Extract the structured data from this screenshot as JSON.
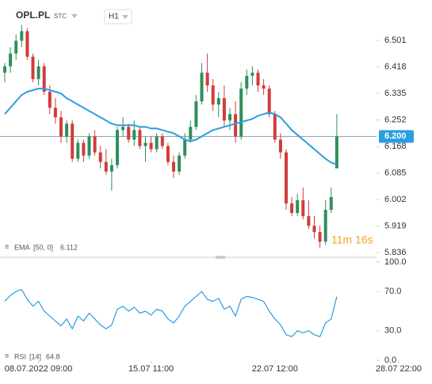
{
  "header": {
    "symbol": "OPL.PL",
    "market": "STC",
    "interval": "H1",
    "countdown": "11m 16s"
  },
  "chart_data": [
    {
      "type": "candlestick",
      "open": [
        6.4,
        6.42,
        6.46,
        6.5,
        6.53,
        6.45,
        6.38,
        6.42,
        6.34,
        6.29,
        6.26,
        6.2,
        6.24,
        6.13,
        6.18,
        6.14,
        6.2,
        6.15,
        6.12,
        6.09,
        6.11,
        6.22,
        6.23,
        6.19,
        6.22,
        6.17,
        6.18,
        6.16,
        6.2,
        6.17,
        6.12,
        6.09,
        6.14,
        6.19,
        6.23,
        6.31,
        6.4,
        6.36,
        6.3,
        6.32,
        6.25,
        6.27,
        6.2,
        6.35,
        6.39,
        6.4,
        6.36,
        6.35,
        6.27,
        6.19,
        6.15,
        5.99,
        5.96,
        6.0,
        5.95,
        5.92,
        5.9,
        5.87,
        5.97,
        6.1
      ],
      "high": [
        6.43,
        6.48,
        6.52,
        6.55,
        6.54,
        6.46,
        6.44,
        6.43,
        6.36,
        6.32,
        6.28,
        6.25,
        6.25,
        6.19,
        6.19,
        6.21,
        6.22,
        6.17,
        6.16,
        6.13,
        6.23,
        6.26,
        6.24,
        6.25,
        6.23,
        6.2,
        6.2,
        6.21,
        6.21,
        6.18,
        6.14,
        6.15,
        6.21,
        6.25,
        6.33,
        6.43,
        6.46,
        6.38,
        6.34,
        6.36,
        6.29,
        6.31,
        6.37,
        6.41,
        6.42,
        6.41,
        6.38,
        6.36,
        6.28,
        6.21,
        6.16,
        6.01,
        6.02,
        6.04,
        6.0,
        5.95,
        5.92,
        6.0,
        6.04,
        6.27
      ],
      "low": [
        6.37,
        6.4,
        6.44,
        6.48,
        6.44,
        6.37,
        6.36,
        6.33,
        6.27,
        6.24,
        6.18,
        6.18,
        6.12,
        6.12,
        6.12,
        6.13,
        6.14,
        6.1,
        6.08,
        6.03,
        6.1,
        6.2,
        6.18,
        6.17,
        6.16,
        6.12,
        6.15,
        6.15,
        6.16,
        6.11,
        6.07,
        6.08,
        6.13,
        6.18,
        6.22,
        6.3,
        6.34,
        6.28,
        6.26,
        6.23,
        6.22,
        6.18,
        6.19,
        6.33,
        6.36,
        6.34,
        6.33,
        6.26,
        6.18,
        6.13,
        5.97,
        5.95,
        5.95,
        5.94,
        5.91,
        5.88,
        5.85,
        5.86,
        5.96,
        6.1
      ],
      "close": [
        6.42,
        6.46,
        6.5,
        6.53,
        6.45,
        6.38,
        6.42,
        6.34,
        6.29,
        6.26,
        6.2,
        6.24,
        6.13,
        6.18,
        6.14,
        6.2,
        6.15,
        6.12,
        6.09,
        6.11,
        6.22,
        6.23,
        6.19,
        6.22,
        6.17,
        6.18,
        6.16,
        6.2,
        6.17,
        6.12,
        6.09,
        6.14,
        6.19,
        6.23,
        6.31,
        6.4,
        6.36,
        6.3,
        6.32,
        6.25,
        6.27,
        6.2,
        6.35,
        6.39,
        6.4,
        6.36,
        6.35,
        6.27,
        6.19,
        6.15,
        5.99,
        5.96,
        6.0,
        5.95,
        5.92,
        5.9,
        5.87,
        5.97,
        6.01,
        6.2
      ],
      "up_color": "#2f8f5b",
      "down_color": "#d23b3b",
      "indicator": {
        "name": "EMA",
        "params": "[50, 0]",
        "value": 6.112,
        "color": "#2a9ee0",
        "values": [
          6.27,
          6.29,
          6.31,
          6.33,
          6.34,
          6.345,
          6.35,
          6.35,
          6.345,
          6.34,
          6.335,
          6.32,
          6.31,
          6.3,
          6.29,
          6.28,
          6.27,
          6.26,
          6.25,
          6.24,
          6.235,
          6.235,
          6.235,
          6.235,
          6.23,
          6.23,
          6.225,
          6.225,
          6.22,
          6.215,
          6.21,
          6.2,
          6.19,
          6.185,
          6.19,
          6.2,
          6.21,
          6.22,
          6.225,
          6.23,
          6.235,
          6.24,
          6.245,
          6.25,
          6.255,
          6.265,
          6.27,
          6.275,
          6.27,
          6.26,
          6.24,
          6.22,
          6.205,
          6.19,
          6.175,
          6.16,
          6.145,
          6.13,
          6.118,
          6.112
        ]
      },
      "current_price": {
        "value": 6.2,
        "label": "6.200"
      },
      "ylim": [
        5.821,
        6.603
      ],
      "yticks": [
        6.501,
        6.418,
        6.335,
        6.252,
        6.168,
        6.085,
        6.002,
        5.919,
        5.836
      ],
      "xlim": [
        -1,
        75
      ],
      "xticks": [
        {
          "value": 6,
          "label": "08.07.2022 09:00"
        },
        {
          "value": 26,
          "label": "15.07 11:00"
        },
        {
          "value": 48,
          "label": "22.07 12:00"
        },
        {
          "value": 70,
          "label": "28.07 22:00"
        }
      ],
      "grid": false
    },
    {
      "type": "line",
      "series": [
        {
          "name": "RSI",
          "params": "[14]",
          "value": 64.8,
          "color": "#2a9ee0",
          "values": [
            60,
            66,
            70,
            72,
            62,
            55,
            60,
            50,
            45,
            40,
            35,
            42,
            32,
            45,
            40,
            48,
            42,
            36,
            32,
            36,
            52,
            55,
            50,
            54,
            48,
            50,
            46,
            52,
            50,
            42,
            38,
            45,
            55,
            60,
            65,
            70,
            62,
            60,
            63,
            52,
            55,
            45,
            62,
            65,
            64,
            62,
            60,
            50,
            42,
            36,
            26,
            24,
            30,
            28,
            30,
            26,
            24,
            38,
            42,
            64.8
          ]
        }
      ],
      "ylim": [
        0,
        100
      ],
      "yticks": [
        {
          "value": 100,
          "label": "100.0"
        },
        {
          "value": 70,
          "label": "70.0"
        },
        {
          "value": 30,
          "label": "30.0"
        },
        {
          "value": 0,
          "label": "0.0"
        }
      ],
      "xlim": [
        -1,
        75
      ]
    }
  ]
}
